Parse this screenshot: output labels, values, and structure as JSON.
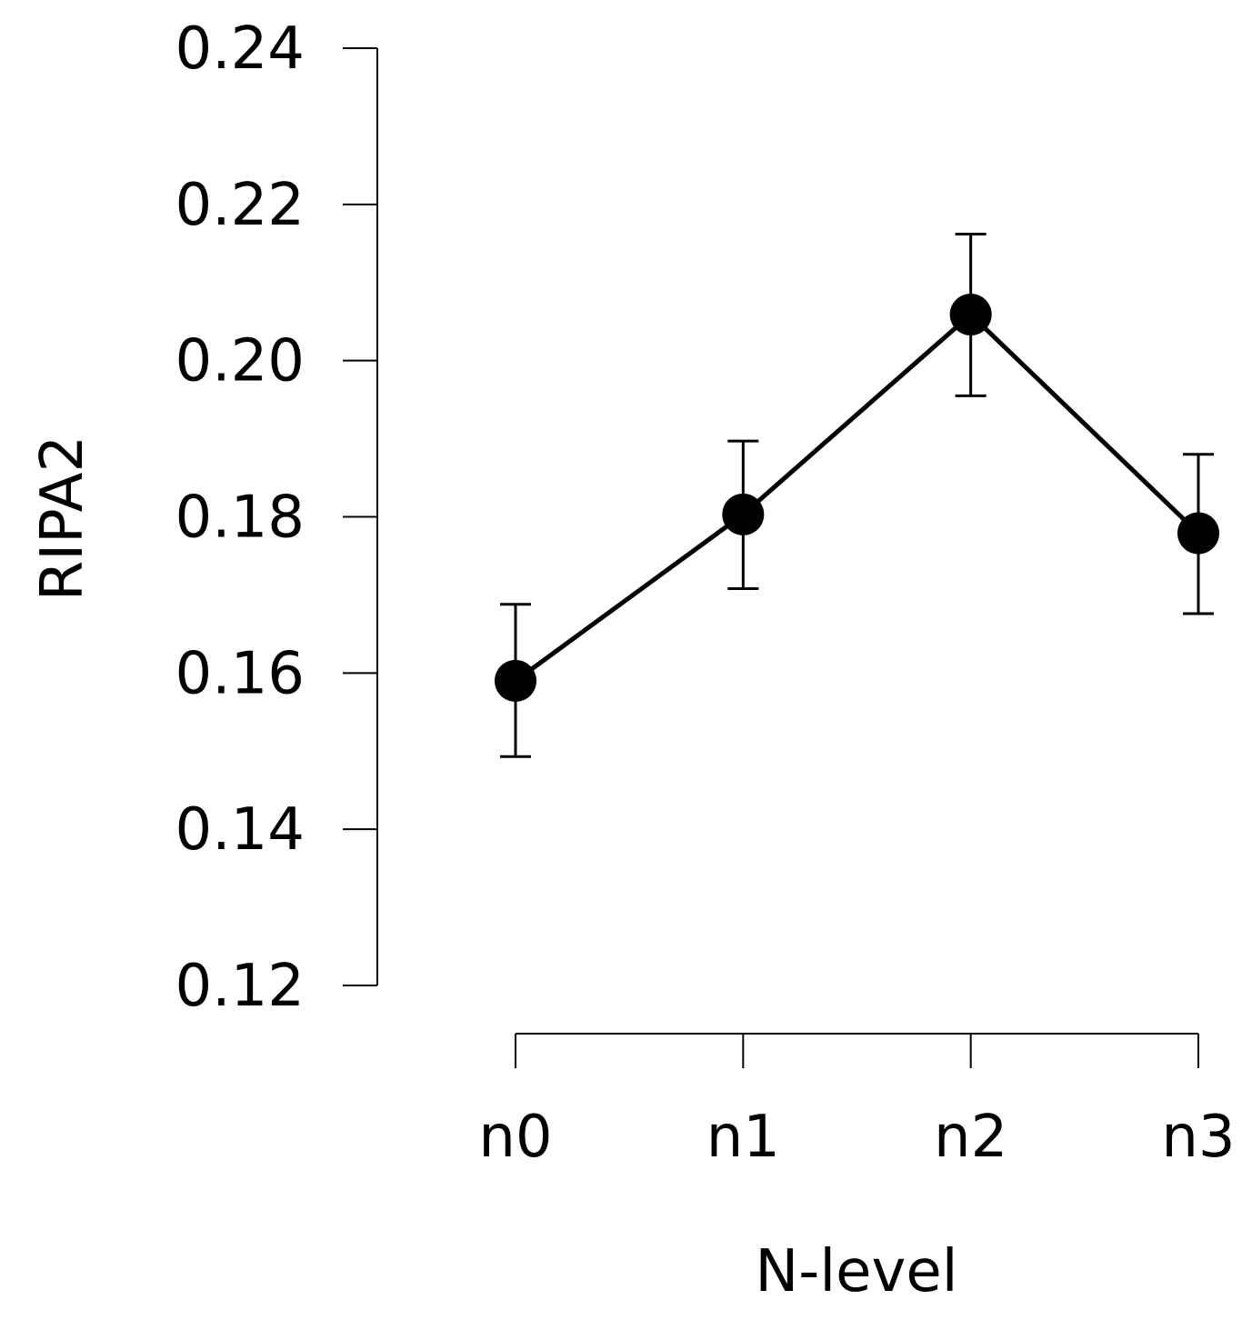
{
  "chart_data": {
    "type": "line",
    "title": "",
    "xlabel": "N-level",
    "ylabel": "RIPA2",
    "categories": [
      "n0",
      "n1",
      "n2",
      "n3"
    ],
    "series": [
      {
        "values": [
          0.159,
          0.1803,
          0.2059,
          0.1779
        ],
        "error_low": [
          0.1493,
          0.1708,
          0.1955,
          0.1676
        ],
        "error_high": [
          0.1688,
          0.1897,
          0.2162,
          0.188
        ],
        "marker": "filled-circle",
        "color": "#000000"
      }
    ],
    "ylim": [
      0.12,
      0.24
    ],
    "yticks": [
      0.12,
      0.14,
      0.16,
      0.18,
      0.2,
      0.22,
      0.24
    ],
    "ytick_labels": [
      "0.12",
      "0.14",
      "0.16",
      "0.18",
      "0.20",
      "0.22",
      "0.24"
    ],
    "grid": false,
    "legend": "none"
  }
}
